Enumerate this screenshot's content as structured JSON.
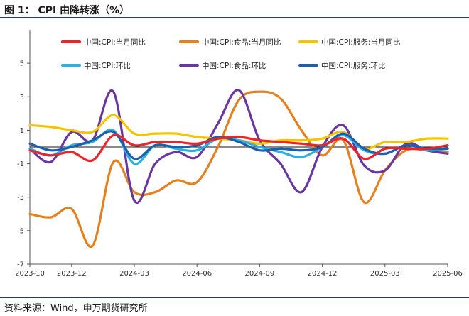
{
  "figure": {
    "title": "图 1：  CPI 由降转涨（%）",
    "source": "资料来源：Wind，申万期货研究所"
  },
  "chart_data": {
    "type": "line",
    "x": [
      "2023-10",
      "2023-11",
      "2023-12",
      "2024-01",
      "2024-02",
      "2024-03",
      "2024-04",
      "2024-05",
      "2024-06",
      "2024-07",
      "2024-08",
      "2024-09",
      "2024-10",
      "2024-11",
      "2024-12",
      "2025-01",
      "2025-02",
      "2025-03",
      "2025-04",
      "2025-05",
      "2025-06"
    ],
    "x_tick_labels": [
      "2023-10",
      "2023-12",
      "2024-03",
      "2024-06",
      "2024-09",
      "2024-12",
      "2025-03",
      "2025-06"
    ],
    "y_ticks": [
      5,
      3,
      1,
      -1,
      -3,
      -5,
      -7
    ],
    "ylim": [
      -7,
      7
    ],
    "grid": false,
    "legend_position": "top",
    "series": [
      {
        "name": "中国:CPI:当月同比",
        "color": "#e8252a",
        "values": [
          -0.2,
          -0.5,
          -0.3,
          -0.8,
          0.7,
          0.1,
          0.3,
          0.3,
          0.2,
          0.5,
          0.6,
          0.4,
          0.3,
          0.2,
          0.1,
          0.5,
          -0.7,
          -0.1,
          -0.1,
          -0.1,
          0.1
        ]
      },
      {
        "name": "中国:CPI:食品:当月同比",
        "color": "#e3801f",
        "values": [
          -4.0,
          -4.2,
          -3.7,
          -5.9,
          -0.9,
          -2.7,
          -2.7,
          -2.0,
          -2.1,
          0.0,
          2.8,
          3.3,
          2.9,
          1.0,
          -0.5,
          0.4,
          -3.3,
          -1.4,
          -0.2,
          -0.2,
          -0.3
        ]
      },
      {
        "name": "中国:CPI:服务:当月同比",
        "color": "#f5c400",
        "values": [
          1.3,
          1.2,
          1.0,
          0.9,
          1.9,
          0.8,
          0.8,
          0.8,
          0.6,
          0.5,
          0.4,
          0.2,
          0.4,
          0.4,
          0.5,
          0.9,
          -0.1,
          0.3,
          0.3,
          0.5,
          0.5
        ]
      },
      {
        "name": "中国:CPI:环比",
        "color": "#2bb0e6",
        "values": [
          -0.1,
          -0.5,
          0.1,
          0.3,
          1.0,
          -1.0,
          0.1,
          -0.1,
          -0.2,
          0.5,
          0.4,
          0.0,
          -0.3,
          -0.6,
          0.0,
          0.7,
          -0.2,
          -0.4,
          0.1,
          -0.2,
          -0.1
        ]
      },
      {
        "name": "中国:CPI:食品:环比",
        "color": "#6a36a0",
        "values": [
          -0.1,
          -0.9,
          0.9,
          0.4,
          3.3,
          -3.2,
          -1.0,
          -0.3,
          -0.6,
          1.4,
          3.4,
          0.4,
          -1.0,
          -2.7,
          0.0,
          1.3,
          -1.1,
          -1.4,
          0.2,
          -0.2,
          -0.4
        ]
      },
      {
        "name": "中国:CPI:服务:环比",
        "color": "#1f5fa8",
        "values": [
          0.2,
          -0.2,
          0.0,
          0.4,
          0.9,
          -0.7,
          0.1,
          0.0,
          0.1,
          0.6,
          0.3,
          -0.2,
          -0.1,
          -0.2,
          0.0,
          0.8,
          -0.1,
          -0.4,
          0.1,
          -0.1,
          -0.1
        ]
      }
    ]
  }
}
